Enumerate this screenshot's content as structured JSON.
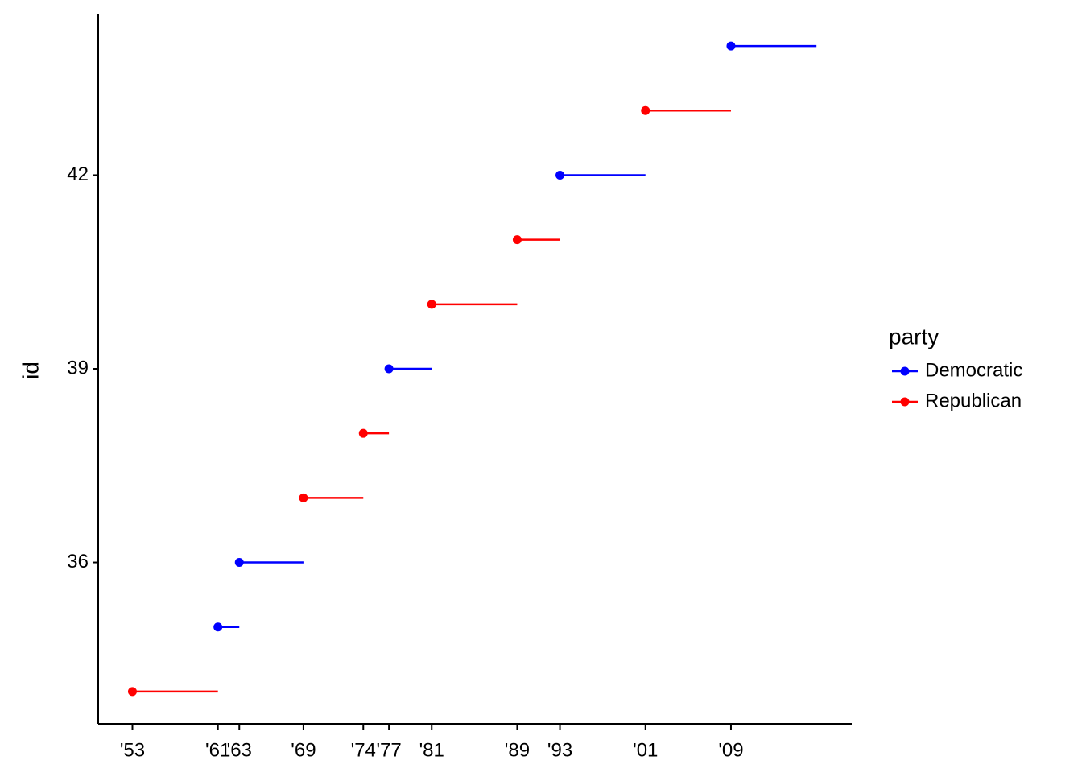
{
  "chart_data": {
    "type": "segment",
    "x_label": null,
    "y_label": "id",
    "legend_title": "party",
    "series": [
      {
        "name": "Democratic",
        "color": "#0000ff",
        "x": [
          1961,
          1963,
          1977,
          1993,
          2009
        ],
        "x_end": [
          1963,
          1969,
          1981,
          2001,
          2017
        ],
        "values": [
          35,
          36,
          39,
          42,
          44
        ]
      },
      {
        "name": "Republican",
        "color": "#ff0000",
        "x": [
          1953,
          1969,
          1974.6,
          1981,
          1989,
          2001
        ],
        "x_end": [
          1961,
          1974.6,
          1977,
          1989,
          1993,
          2009
        ],
        "values": [
          34,
          37,
          38,
          40,
          41,
          43
        ]
      }
    ],
    "xlim": [
      1949.8,
      2020.3
    ],
    "ylim": [
      33.5,
      44.5
    ],
    "xticks": [
      {
        "value": 1953,
        "label": "'53"
      },
      {
        "value": 1961,
        "label": "'61"
      },
      {
        "value": 1963,
        "label": "'63"
      },
      {
        "value": 1969,
        "label": "'69"
      },
      {
        "value": 1974.6,
        "label": "'74"
      },
      {
        "value": 1977,
        "label": "'77"
      },
      {
        "value": 1981,
        "label": "'81"
      },
      {
        "value": 1989,
        "label": "'89"
      },
      {
        "value": 1993,
        "label": "'93"
      },
      {
        "value": 2001,
        "label": "'01"
      },
      {
        "value": 2009,
        "label": "'09"
      }
    ],
    "yticks": [
      36,
      39,
      42
    ]
  }
}
